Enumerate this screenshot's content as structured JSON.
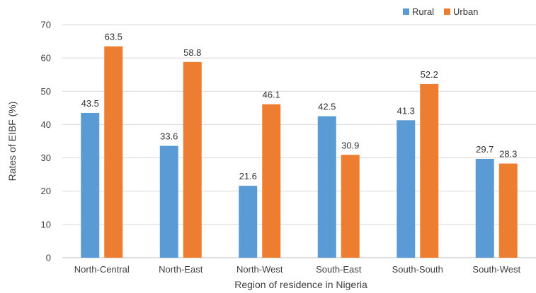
{
  "chart_data": {
    "type": "bar",
    "categories": [
      "North-Central",
      "North-East",
      "North-West",
      "South-East",
      "South-South",
      "South-West"
    ],
    "series": [
      {
        "name": "Rural",
        "values": [
          43.5,
          33.6,
          21.6,
          42.5,
          41.3,
          29.7
        ],
        "color": "#5B9BD5"
      },
      {
        "name": "Urban",
        "values": [
          63.5,
          58.8,
          46.1,
          30.9,
          52.2,
          28.3
        ],
        "color": "#ED7D31"
      }
    ],
    "xlabel": "Region of residence in Nigeria",
    "ylabel": "Rates of EIBF (%)",
    "ylim": [
      0,
      70
    ],
    "yticks": [
      0,
      10,
      20,
      30,
      40,
      50,
      60,
      70
    ],
    "grid": true,
    "legend_position": "top-right",
    "data_labels": true
  }
}
